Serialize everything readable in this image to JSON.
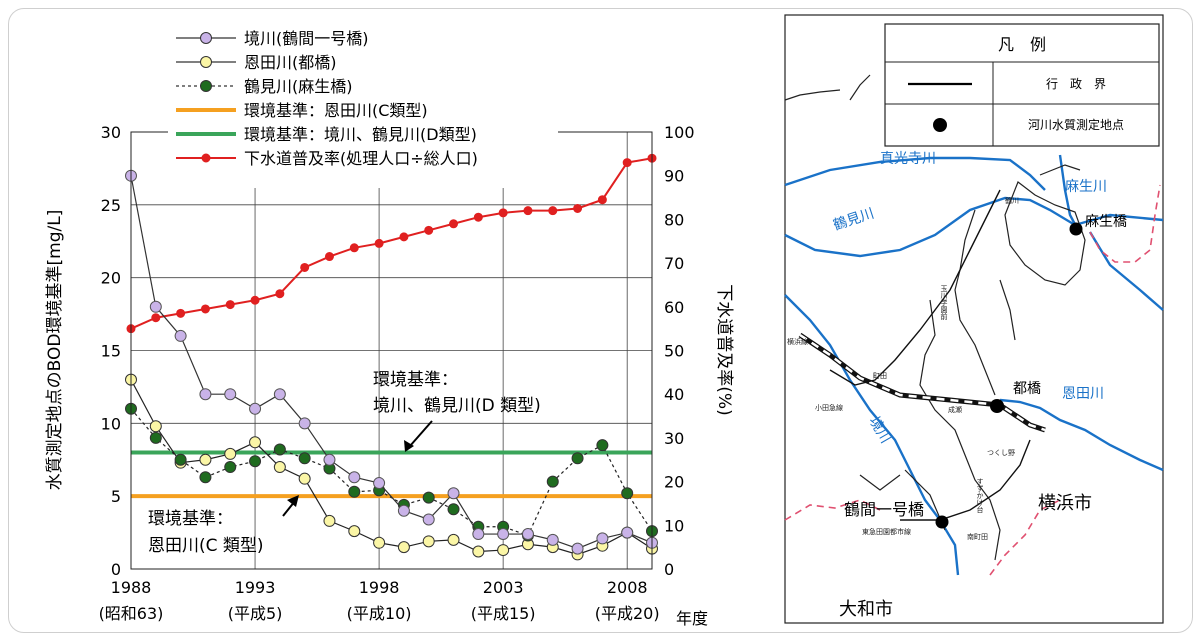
{
  "chart_data": {
    "type": "line",
    "x": [
      1988,
      1989,
      1990,
      1991,
      1992,
      1993,
      1994,
      1995,
      1996,
      1997,
      1998,
      1999,
      2000,
      2001,
      2002,
      2003,
      2004,
      2005,
      2006,
      2007,
      2008,
      2009
    ],
    "x_tick_years": [
      "1988",
      "1993",
      "1998",
      "2003",
      "2008"
    ],
    "x_tick_eras": [
      "(昭和63)",
      "(平成5)",
      "(平成10)",
      "(平成15)",
      "(平成20)"
    ],
    "x_unit": "年度",
    "ylabel": "水質測定地点のBOD環境基準[mg/L]",
    "y2label": "下水道普及率(%)",
    "ylim": [
      0,
      30
    ],
    "y2lim": [
      0,
      100
    ],
    "y_ticks": [
      "0",
      "5",
      "10",
      "15",
      "20",
      "25",
      "30"
    ],
    "y2_ticks": [
      "0",
      "10",
      "20",
      "30",
      "40",
      "50",
      "60",
      "70",
      "80",
      "90",
      "100"
    ],
    "grid": true,
    "legend_position": "top-left",
    "series": [
      {
        "name": "境川(鶴間一号橋)",
        "axis": "left",
        "color": "#7f4ea8",
        "fill": "#c9b3e8",
        "dash": false,
        "values": [
          27,
          18,
          16,
          12,
          12,
          11,
          12,
          10,
          7.5,
          6.3,
          5.9,
          4,
          3.4,
          5.2,
          2.4,
          2.4,
          2.4,
          2,
          1.4,
          2.1,
          2.5,
          1.8
        ]
      },
      {
        "name": "恩田川(都橋)",
        "axis": "left",
        "color": "#000000",
        "fill": "#fbf6a6",
        "dash": false,
        "values": [
          13,
          9.8,
          7.3,
          7.5,
          7.9,
          8.7,
          7,
          6.2,
          3.3,
          2.6,
          1.8,
          1.5,
          1.9,
          2,
          1.2,
          1.3,
          1.7,
          1.5,
          1,
          1.6,
          2.5,
          1.4
        ]
      },
      {
        "name": "鶴見川(麻生橋)",
        "axis": "left",
        "color": "#000000",
        "fill": "#1f6b1f",
        "dash": true,
        "values": [
          11,
          9,
          7.5,
          6.3,
          7,
          7.4,
          8.2,
          7.6,
          6.9,
          5.3,
          5.4,
          4.4,
          4.9,
          4.1,
          2.9,
          2.9,
          2.3,
          6,
          7.6,
          8.5,
          5.2,
          2.6
        ]
      },
      {
        "name": "下水道普及率(処理人口÷総人口)",
        "axis": "right",
        "color": "#e02020",
        "fill": "#e02020",
        "dash": false,
        "values": [
          55,
          57.5,
          58.5,
          59.5,
          60.5,
          61.5,
          63,
          69,
          71.5,
          73.5,
          74.5,
          76,
          77.5,
          79,
          80.5,
          81.5,
          82,
          82,
          82.5,
          84.5,
          93,
          94
        ]
      }
    ],
    "reference_lines": [
      {
        "name": "環境基準：恩田川(C類型)",
        "value": 5,
        "color": "#f5a020"
      },
      {
        "name": "環境基準：境川、鶴見川(D類型)",
        "value": 8,
        "color": "#3aa55a"
      }
    ],
    "annotations": [
      {
        "lines": [
          "環境基準：",
          "境川、鶴見川(D 類型)"
        ]
      },
      {
        "lines": [
          "環境基準：",
          "恩田川(C 類型)"
        ]
      }
    ]
  },
  "map": {
    "legend_title": "凡　例",
    "legend_items": [
      {
        "symbol": "line",
        "label": "行　政　界"
      },
      {
        "symbol": "dot",
        "label": "河川水質測定地点"
      }
    ],
    "rivers": [
      "真光寺川",
      "麻生川",
      "鶴見川",
      "恩田川",
      "境川"
    ],
    "stations": [
      "麻生橋",
      "都橋",
      "鶴間一号橋"
    ],
    "cities": [
      "横浜市",
      "大和市"
    ],
    "small_labels": [
      "鶴川",
      "玉川学園前",
      "町田",
      "小田急線",
      "成瀬",
      "つくし野",
      "すずかけ台",
      "南町田",
      "東急田園都市線",
      "横浜線"
    ]
  },
  "colors": {
    "river": "#1a72c8",
    "boundary": "#e05070",
    "grid": "#444444"
  }
}
